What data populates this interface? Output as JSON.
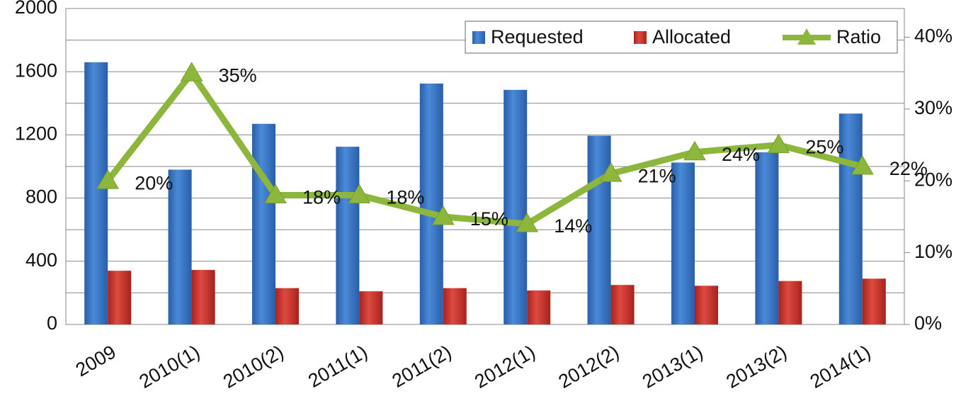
{
  "chart_data": {
    "type": "bar_line",
    "categories": [
      "2009",
      "2010(1)",
      "2010(2)",
      "2011(1)",
      "2011(2)",
      "2012(1)",
      "2012(2)",
      "2013(1)",
      "2013(2)",
      "2014(1)"
    ],
    "series": [
      {
        "name": "Requested",
        "color": "#3a78c9",
        "values": [
          1660,
          980,
          1270,
          1125,
          1525,
          1485,
          1195,
          1025,
          1090,
          1335
        ]
      },
      {
        "name": "Allocated",
        "color": "#c9332c",
        "values": [
          340,
          345,
          230,
          210,
          230,
          215,
          250,
          245,
          275,
          290
        ]
      },
      {
        "name": "Ratio",
        "color": "#8db63c",
        "axis": "y2",
        "values": [
          20,
          35,
          18,
          18,
          15,
          14,
          21,
          24,
          25,
          22
        ],
        "value_labels": [
          "20%",
          "35%",
          "18%",
          "18%",
          "15%",
          "14%",
          "21%",
          "24%",
          "25%",
          "22%"
        ]
      }
    ],
    "ylim": [
      0,
      2000
    ],
    "yticks": [
      0,
      400,
      800,
      1200,
      1600,
      2000
    ],
    "y_minor_ticks": [
      200,
      600,
      1000,
      1400,
      1800
    ],
    "y2lim": [
      0,
      44
    ],
    "y2ticks": [
      {
        "value": 0,
        "label": "0%"
      },
      {
        "value": 10,
        "label": "10%"
      },
      {
        "value": 20,
        "label": "20%"
      },
      {
        "value": 30,
        "label": "30%"
      },
      {
        "value": 40,
        "label": "40%"
      }
    ],
    "grid": true,
    "legend": "top-right"
  }
}
